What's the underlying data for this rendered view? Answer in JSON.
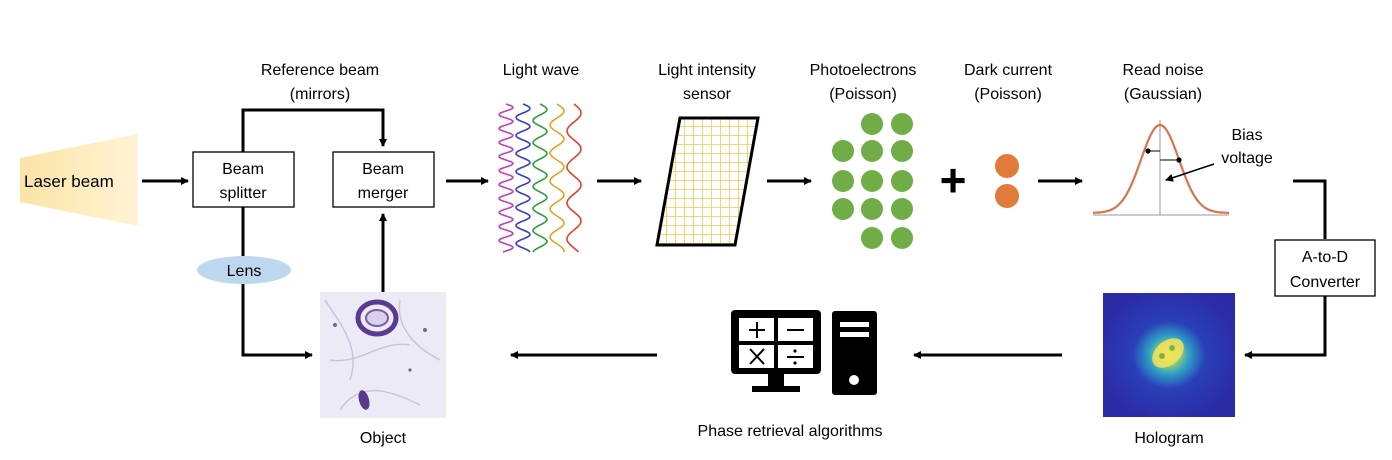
{
  "nodes": {
    "laser": "Laser beam",
    "splitter": [
      "Beam",
      "splitter"
    ],
    "merger": [
      "Beam",
      "merger"
    ],
    "reference": [
      "Reference beam",
      "(mirrors)"
    ],
    "lens": "Lens",
    "object": "Object",
    "light_wave": "Light wave",
    "sensor": [
      "Light intensity",
      "sensor"
    ],
    "photoelectrons": [
      "Photoelectrons",
      "(Poisson)"
    ],
    "plus": "+",
    "dark_current": [
      "Dark current",
      "(Poisson)"
    ],
    "read_noise": [
      "Read noise",
      "(Gaussian)"
    ],
    "bias": [
      "Bias",
      "voltage"
    ],
    "adc": [
      "A-to-D",
      "Converter"
    ],
    "hologram": "Hologram",
    "phase": "Phase retrieval algorithms"
  },
  "colors": {
    "photoelectron": "#70AD47",
    "dark_current": "#E07B39",
    "sensor_grid": "#F2C94C",
    "gaussian": "#D9734E",
    "lens": "#BDD7EE",
    "laser_from": "#FBE3A6",
    "laser_to": "#FFF6DF"
  },
  "icons": {
    "light_wave": "sine-wave-icon",
    "sensor": "grid-sensor-icon",
    "computer": "calculator-computer-icon"
  }
}
